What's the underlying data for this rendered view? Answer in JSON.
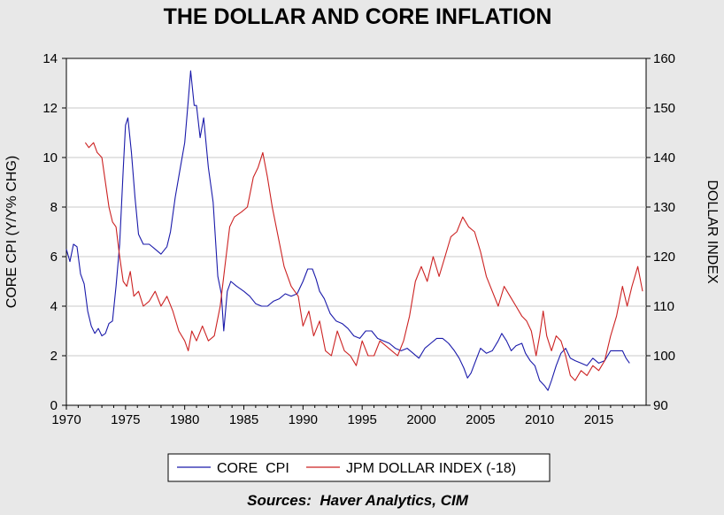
{
  "chart_data": {
    "type": "line",
    "title": "THE DOLLAR AND CORE INFLATION",
    "ylabel_left": "CORE CPI (Y/Y% CHG)",
    "ylabel_right": "DOLLAR INDEX",
    "source": "Sources:  Haver Analytics, CIM",
    "xlim": [
      1970,
      2019
    ],
    "ylim_left": [
      0,
      14
    ],
    "ylim_right": [
      90,
      160
    ],
    "x_ticks": [
      1970,
      1975,
      1980,
      1985,
      1990,
      1995,
      2000,
      2005,
      2010,
      2015
    ],
    "y_left_ticks": [
      0,
      2,
      4,
      6,
      8,
      10,
      12,
      14
    ],
    "y_right_ticks": [
      90,
      100,
      110,
      120,
      130,
      140,
      150,
      160
    ],
    "grid": "horizontal",
    "legend_position": "bottom-center",
    "series": [
      {
        "name": "CORE  CPI",
        "axis": "left",
        "color": "#1a1aaa",
        "points": [
          [
            1970.0,
            6.3
          ],
          [
            1970.3,
            5.8
          ],
          [
            1970.6,
            6.5
          ],
          [
            1970.9,
            6.4
          ],
          [
            1971.2,
            5.3
          ],
          [
            1971.5,
            4.9
          ],
          [
            1971.8,
            3.8
          ],
          [
            1972.1,
            3.2
          ],
          [
            1972.4,
            2.9
          ],
          [
            1972.7,
            3.1
          ],
          [
            1973.0,
            2.8
          ],
          [
            1973.3,
            2.9
          ],
          [
            1973.6,
            3.3
          ],
          [
            1973.9,
            3.4
          ],
          [
            1974.2,
            4.8
          ],
          [
            1974.5,
            6.5
          ],
          [
            1974.8,
            9.5
          ],
          [
            1975.0,
            11.3
          ],
          [
            1975.2,
            11.6
          ],
          [
            1975.5,
            10.2
          ],
          [
            1975.8,
            8.4
          ],
          [
            1976.1,
            6.9
          ],
          [
            1976.5,
            6.5
          ],
          [
            1977.0,
            6.5
          ],
          [
            1977.5,
            6.3
          ],
          [
            1978.0,
            6.1
          ],
          [
            1978.5,
            6.4
          ],
          [
            1978.8,
            7.0
          ],
          [
            1979.2,
            8.4
          ],
          [
            1979.6,
            9.5
          ],
          [
            1980.0,
            10.6
          ],
          [
            1980.3,
            12.3
          ],
          [
            1980.5,
            13.5
          ],
          [
            1980.8,
            12.1
          ],
          [
            1981.0,
            12.1
          ],
          [
            1981.3,
            10.8
          ],
          [
            1981.6,
            11.6
          ],
          [
            1982.0,
            9.6
          ],
          [
            1982.4,
            8.2
          ],
          [
            1982.8,
            5.2
          ],
          [
            1983.1,
            4.5
          ],
          [
            1983.3,
            3.0
          ],
          [
            1983.6,
            4.6
          ],
          [
            1983.9,
            5.0
          ],
          [
            1984.4,
            4.8
          ],
          [
            1985.0,
            4.6
          ],
          [
            1985.5,
            4.4
          ],
          [
            1986.0,
            4.1
          ],
          [
            1986.5,
            4.0
          ],
          [
            1987.0,
            4.0
          ],
          [
            1987.5,
            4.2
          ],
          [
            1988.0,
            4.3
          ],
          [
            1988.5,
            4.5
          ],
          [
            1989.0,
            4.4
          ],
          [
            1989.5,
            4.5
          ],
          [
            1990.0,
            5.0
          ],
          [
            1990.4,
            5.5
          ],
          [
            1990.8,
            5.5
          ],
          [
            1991.1,
            5.1
          ],
          [
            1991.4,
            4.6
          ],
          [
            1991.8,
            4.3
          ],
          [
            1992.3,
            3.7
          ],
          [
            1992.8,
            3.4
          ],
          [
            1993.3,
            3.3
          ],
          [
            1993.8,
            3.1
          ],
          [
            1994.3,
            2.8
          ],
          [
            1994.8,
            2.7
          ],
          [
            1995.3,
            3.0
          ],
          [
            1995.8,
            3.0
          ],
          [
            1996.3,
            2.7
          ],
          [
            1996.8,
            2.6
          ],
          [
            1997.3,
            2.5
          ],
          [
            1997.8,
            2.3
          ],
          [
            1998.3,
            2.2
          ],
          [
            1998.8,
            2.3
          ],
          [
            1999.3,
            2.1
          ],
          [
            1999.8,
            1.9
          ],
          [
            2000.3,
            2.3
          ],
          [
            2000.8,
            2.5
          ],
          [
            2001.3,
            2.7
          ],
          [
            2001.8,
            2.7
          ],
          [
            2002.3,
            2.5
          ],
          [
            2002.8,
            2.2
          ],
          [
            2003.2,
            1.9
          ],
          [
            2003.6,
            1.5
          ],
          [
            2003.9,
            1.1
          ],
          [
            2004.2,
            1.3
          ],
          [
            2004.6,
            1.8
          ],
          [
            2005.0,
            2.3
          ],
          [
            2005.5,
            2.1
          ],
          [
            2006.0,
            2.2
          ],
          [
            2006.5,
            2.6
          ],
          [
            2006.8,
            2.9
          ],
          [
            2007.2,
            2.6
          ],
          [
            2007.6,
            2.2
          ],
          [
            2008.0,
            2.4
          ],
          [
            2008.5,
            2.5
          ],
          [
            2008.8,
            2.1
          ],
          [
            2009.2,
            1.8
          ],
          [
            2009.6,
            1.6
          ],
          [
            2010.0,
            1.0
          ],
          [
            2010.4,
            0.8
          ],
          [
            2010.7,
            0.6
          ],
          [
            2011.0,
            1.0
          ],
          [
            2011.4,
            1.6
          ],
          [
            2011.8,
            2.1
          ],
          [
            2012.2,
            2.3
          ],
          [
            2012.6,
            1.9
          ],
          [
            2013.0,
            1.8
          ],
          [
            2013.5,
            1.7
          ],
          [
            2014.0,
            1.6
          ],
          [
            2014.5,
            1.9
          ],
          [
            2015.0,
            1.7
          ],
          [
            2015.5,
            1.8
          ],
          [
            2016.0,
            2.2
          ],
          [
            2016.5,
            2.2
          ],
          [
            2017.0,
            2.2
          ],
          [
            2017.3,
            1.9
          ],
          [
            2017.6,
            1.7
          ]
        ]
      },
      {
        "name": "JPM DOLLAR INDEX (-18)",
        "axis": "right",
        "color": "#cc2222",
        "points": [
          [
            1971.6,
            143
          ],
          [
            1971.9,
            142
          ],
          [
            1972.3,
            143
          ],
          [
            1972.6,
            141
          ],
          [
            1973.0,
            140
          ],
          [
            1973.3,
            135
          ],
          [
            1973.6,
            130
          ],
          [
            1973.9,
            127
          ],
          [
            1974.2,
            126
          ],
          [
            1974.5,
            120
          ],
          [
            1974.8,
            115
          ],
          [
            1975.1,
            114
          ],
          [
            1975.4,
            117
          ],
          [
            1975.7,
            112
          ],
          [
            1976.1,
            113
          ],
          [
            1976.5,
            110
          ],
          [
            1977.0,
            111
          ],
          [
            1977.5,
            113
          ],
          [
            1978.0,
            110
          ],
          [
            1978.5,
            112
          ],
          [
            1979.0,
            109
          ],
          [
            1979.5,
            105
          ],
          [
            1980.0,
            103
          ],
          [
            1980.3,
            101
          ],
          [
            1980.6,
            105
          ],
          [
            1981.0,
            103
          ],
          [
            1981.5,
            106
          ],
          [
            1982.0,
            103
          ],
          [
            1982.5,
            104
          ],
          [
            1983.0,
            110
          ],
          [
            1983.4,
            118
          ],
          [
            1983.8,
            126
          ],
          [
            1984.2,
            128
          ],
          [
            1984.8,
            129
          ],
          [
            1985.3,
            130
          ],
          [
            1985.8,
            136
          ],
          [
            1986.2,
            138
          ],
          [
            1986.6,
            141
          ],
          [
            1987.0,
            136
          ],
          [
            1987.4,
            130
          ],
          [
            1987.9,
            124
          ],
          [
            1988.4,
            118
          ],
          [
            1989.0,
            114
          ],
          [
            1989.6,
            112
          ],
          [
            1990.0,
            106
          ],
          [
            1990.5,
            109
          ],
          [
            1990.9,
            104
          ],
          [
            1991.4,
            107
          ],
          [
            1991.9,
            101
          ],
          [
            1992.4,
            100
          ],
          [
            1992.9,
            105
          ],
          [
            1993.5,
            101
          ],
          [
            1994.0,
            100
          ],
          [
            1994.5,
            98
          ],
          [
            1995.0,
            103
          ],
          [
            1995.5,
            100
          ],
          [
            1996.0,
            100
          ],
          [
            1996.5,
            103
          ],
          [
            1997.0,
            102
          ],
          [
            1997.5,
            101
          ],
          [
            1998.0,
            100
          ],
          [
            1998.5,
            103
          ],
          [
            1999.0,
            108
          ],
          [
            1999.5,
            115
          ],
          [
            2000.0,
            118
          ],
          [
            2000.5,
            115
          ],
          [
            2001.0,
            120
          ],
          [
            2001.5,
            116
          ],
          [
            2002.0,
            120
          ],
          [
            2002.5,
            124
          ],
          [
            2003.0,
            125
          ],
          [
            2003.5,
            128
          ],
          [
            2004.0,
            126
          ],
          [
            2004.5,
            125
          ],
          [
            2005.0,
            121
          ],
          [
            2005.5,
            116
          ],
          [
            2006.0,
            113
          ],
          [
            2006.5,
            110
          ],
          [
            2007.0,
            114
          ],
          [
            2007.5,
            112
          ],
          [
            2008.0,
            110
          ],
          [
            2008.5,
            108
          ],
          [
            2008.9,
            107
          ],
          [
            2009.3,
            105
          ],
          [
            2009.7,
            100
          ],
          [
            2010.0,
            104
          ],
          [
            2010.3,
            109
          ],
          [
            2010.6,
            104
          ],
          [
            2011.0,
            101
          ],
          [
            2011.4,
            104
          ],
          [
            2011.8,
            103
          ],
          [
            2012.2,
            100
          ],
          [
            2012.6,
            96
          ],
          [
            2013.0,
            95
          ],
          [
            2013.5,
            97
          ],
          [
            2014.0,
            96
          ],
          [
            2014.5,
            98
          ],
          [
            2015.0,
            97
          ],
          [
            2015.5,
            99
          ],
          [
            2016.0,
            104
          ],
          [
            2016.5,
            108
          ],
          [
            2017.0,
            114
          ],
          [
            2017.4,
            110
          ],
          [
            2017.8,
            114
          ],
          [
            2018.3,
            118
          ],
          [
            2018.7,
            113
          ]
        ]
      }
    ]
  }
}
